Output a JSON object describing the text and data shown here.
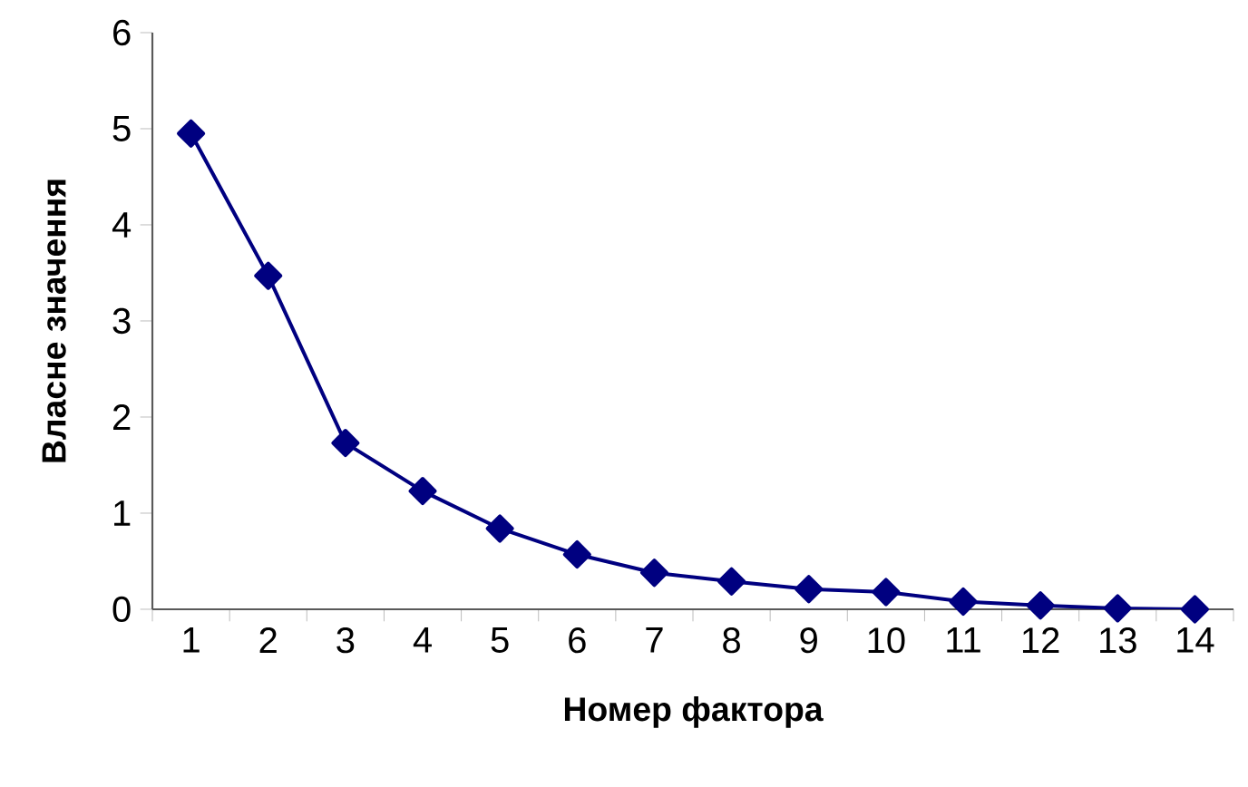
{
  "chart_data": {
    "type": "line",
    "xlabel": "Номер фактора",
    "ylabel": "Власне значення",
    "categories": [
      "1",
      "2",
      "3",
      "4",
      "5",
      "6",
      "7",
      "8",
      "9",
      "10",
      "11",
      "12",
      "13",
      "14"
    ],
    "values": [
      4.95,
      3.47,
      1.73,
      1.23,
      0.84,
      0.57,
      0.38,
      0.29,
      0.21,
      0.18,
      0.08,
      0.04,
      0.01,
      0.0
    ],
    "color": "#000080",
    "marker": "diamond",
    "line_style": "solid",
    "ylim": [
      0,
      6
    ],
    "yticks": [
      0,
      1,
      2,
      3,
      4,
      5,
      6
    ],
    "grid": false
  }
}
